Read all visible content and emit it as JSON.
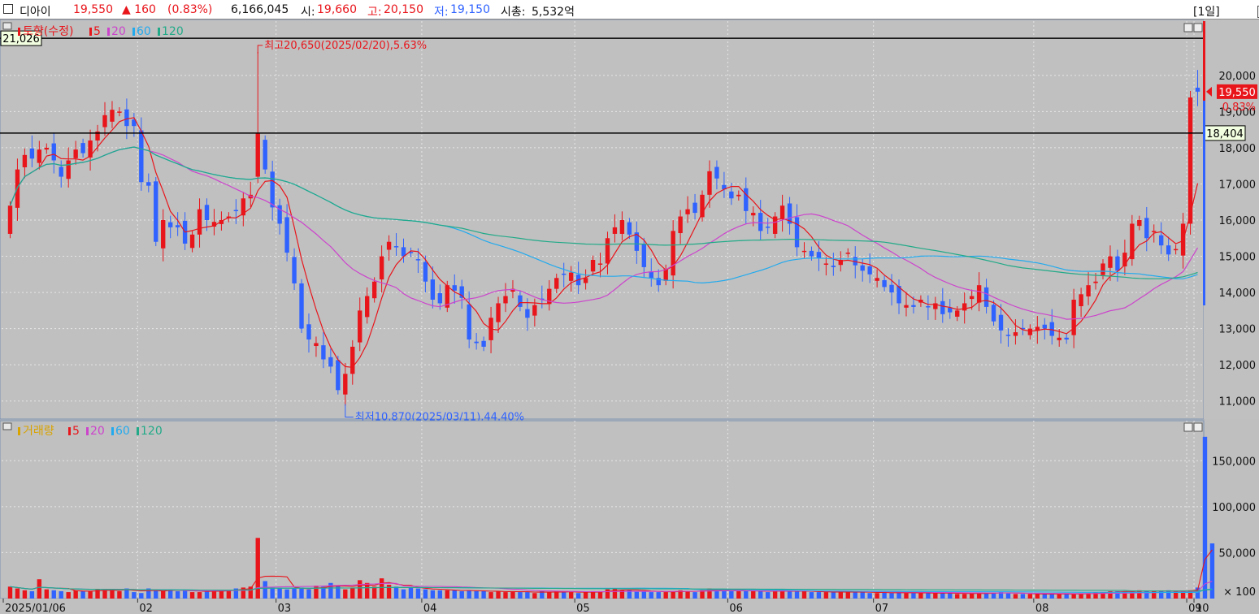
{
  "header": {
    "name": "디아이",
    "price": "19,550",
    "change": "▲ 160",
    "change_pct": "(0.83%)",
    "volume": "6,166,045",
    "open_label": "시:",
    "open": "19,660",
    "high_label": "고:",
    "high": "20,150",
    "low_label": "저:",
    "low": "19,150",
    "cap_label": "시총:",
    "cap": "5,532억",
    "period": "[1일]",
    "colors": {
      "up": "#e8151b",
      "down": "#2f62ff"
    }
  },
  "chart_data": [
    {
      "type": "candlestick",
      "legend": {
        "title": "토향(수정)",
        "items": [
          "5",
          "20",
          "60",
          "120"
        ]
      },
      "legend_colors": [
        "#e8151b",
        "#cc44cc",
        "#22aaee",
        "#22aa88"
      ],
      "ylim": [
        10500,
        21500
      ],
      "y_ticks": [
        "11,000",
        "12,000",
        "13,000",
        "14,000",
        "15,000",
        "16,000",
        "17,000",
        "18,000",
        "19,000",
        "20,000"
      ],
      "x_ticks": [
        "2025/01/06",
        "02",
        "03",
        "04",
        "05",
        "06",
        "07",
        "08",
        "09",
        "10"
      ],
      "hlines": [
        {
          "value": 21026,
          "label": "21,026",
          "side": "left"
        },
        {
          "value": 18404,
          "label": "18,404",
          "side": "right"
        }
      ],
      "last_price_label": "19,550",
      "last_pct_label": "0.83%",
      "annotations": {
        "high": "최고20,650(2025/02/20),5.63%",
        "low": "최저10,870(2025/03/11),44.40%"
      },
      "closes": [
        16400,
        17400,
        17800,
        17700,
        17950,
        18000,
        17650,
        17200,
        17650,
        17950,
        17850,
        18200,
        18450,
        18900,
        19050,
        19000,
        18600,
        18600,
        17050,
        16950,
        15400,
        16000,
        15800,
        15800,
        15350,
        15600,
        16300,
        16000,
        15950,
        16000,
        16100,
        16250,
        16600,
        16700,
        18400,
        17400,
        16350,
        15900,
        15100,
        14250,
        13000,
        12700,
        12600,
        12150,
        11950,
        11300,
        11750,
        12500,
        13500,
        13900,
        14300,
        15000,
        15400,
        15250,
        15000,
        15100,
        14900,
        14300,
        13800,
        13700,
        14200,
        14050,
        13850,
        12700,
        12600,
        12500,
        13300,
        13700,
        13900,
        14100,
        13600,
        13300,
        13650,
        13800,
        14100,
        14400,
        14500,
        14550,
        14200,
        14400,
        14900,
        14800,
        15500,
        15800,
        16000,
        15600,
        15150,
        14700,
        14400,
        14200,
        14650,
        15700,
        16100,
        16300,
        16200,
        16700,
        17350,
        17150,
        16850,
        16600,
        16700,
        16250,
        16200,
        15700,
        15800,
        16100,
        16400,
        15900,
        15250,
        15150,
        15000,
        14950,
        14800,
        14700,
        14900,
        15100,
        14750,
        14600,
        14500,
        14400,
        14150,
        14000,
        13700,
        13650,
        13600,
        13800,
        13600,
        13700,
        13400,
        13450,
        13500,
        13700,
        13900,
        14200,
        13600,
        13200,
        12950,
        12800,
        12900,
        13000,
        13000,
        13050,
        13000,
        12800,
        12750,
        12700,
        13800,
        13950,
        14200,
        14300,
        14800,
        15000,
        14600,
        15100,
        15900,
        16000,
        15500,
        15700,
        15300,
        15050,
        15200,
        15900,
        19390,
        19550
      ],
      "ma_lines": [
        "5",
        "20",
        "60",
        "120"
      ]
    },
    {
      "type": "bar",
      "legend": {
        "title": "거래량",
        "items": [
          "5",
          "20",
          "60",
          "120"
        ]
      },
      "ylim": [
        0,
        190000
      ],
      "y_ticks": [
        "50,000",
        "100,000",
        "150,000"
      ],
      "unit_label": "× 100",
      "values": [
        13000,
        11000,
        9000,
        8000,
        21000,
        10000,
        9000,
        8000,
        7000,
        9000,
        8000,
        8000,
        10000,
        9000,
        10000,
        8000,
        11000,
        7000,
        6000,
        11000,
        9000,
        8000,
        10000,
        8000,
        9000,
        7000,
        7000,
        8000,
        9000,
        9000,
        9000,
        11000,
        12000,
        13000,
        66000,
        19000,
        12000,
        11000,
        10000,
        11000,
        12000,
        10000,
        14000,
        13000,
        17000,
        14000,
        10000,
        12000,
        20000,
        17000,
        13000,
        22000,
        15000,
        13000,
        10000,
        12000,
        11000,
        10000,
        9000,
        9000,
        9000,
        9000,
        8000,
        9000,
        8000,
        8000,
        7000,
        8000,
        7000,
        8000,
        7000,
        7000,
        6000,
        8000,
        7000,
        8000,
        7000,
        7000,
        6000,
        7000,
        8000,
        8000,
        10000,
        11000,
        9000,
        9000,
        8000,
        8000,
        7000,
        7000,
        7000,
        8000,
        9000,
        8000,
        7000,
        9000,
        11000,
        10000,
        9000,
        8000,
        8000,
        8000,
        9000,
        8000,
        7000,
        8000,
        9000,
        8000,
        8000,
        8000,
        7000,
        7000,
        7000,
        7000,
        8000,
        7000,
        7000,
        7000,
        6000,
        6000,
        7000,
        6000,
        7000,
        6000,
        6000,
        6000,
        6000,
        6000,
        6000,
        6000,
        5000,
        5000,
        6000,
        6000,
        6000,
        6000,
        7000,
        6000,
        5000,
        5000,
        5000,
        5000,
        5000,
        5000,
        5000,
        5000,
        5000,
        5000,
        6000,
        7000,
        7000,
        8000,
        8000,
        8000,
        8000,
        9000,
        8000,
        8000,
        8000,
        9000,
        8000,
        8000,
        9000,
        12000,
        176000,
        60000
      ],
      "ma_lines": [
        "5",
        "20",
        "60",
        "120"
      ]
    }
  ]
}
